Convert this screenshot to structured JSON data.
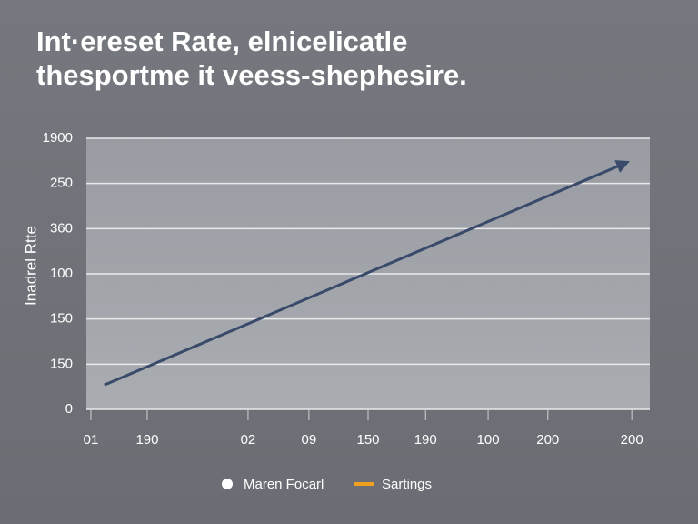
{
  "chart_data": {
    "type": "line",
    "title": [
      "Int·ereset Rate, elnicelicatle",
      "thesportme it veess-shephesire."
    ],
    "y_label": "Inadrel Rtte",
    "xlim": [
      0,
      100
    ],
    "xticks": [
      {
        "value": 0.8,
        "label": "01"
      },
      {
        "value": 10.8,
        "label": "190"
      },
      {
        "value": 28.7,
        "label": "02"
      },
      {
        "value": 39.5,
        "label": "09"
      },
      {
        "value": 50,
        "label": "150"
      },
      {
        "value": 60.2,
        "label": "190"
      },
      {
        "value": 71.3,
        "label": "100"
      },
      {
        "value": 81.9,
        "label": "200"
      },
      {
        "value": 96.8,
        "label": "200"
      }
    ],
    "ylim": [
      0,
      6
    ],
    "yticks": [
      0,
      {
        "value": 1,
        "label": "150"
      },
      {
        "value": 2,
        "label": "150"
      },
      {
        "value": 3,
        "label": "100"
      },
      {
        "value": 4,
        "label": "360"
      },
      {
        "value": 5,
        "label": "250"
      },
      {
        "value": 6,
        "label": "1900"
      }
    ],
    "grid": true,
    "x": [
      3.2,
      96
    ],
    "series": [
      {
        "name": "Maren Focarl",
        "color": "#3a4a6b",
        "values": [
          0.54,
          5.47
        ]
      }
    ],
    "legend_extra": {
      "name": "Sartings",
      "color": "#f0a020"
    }
  }
}
